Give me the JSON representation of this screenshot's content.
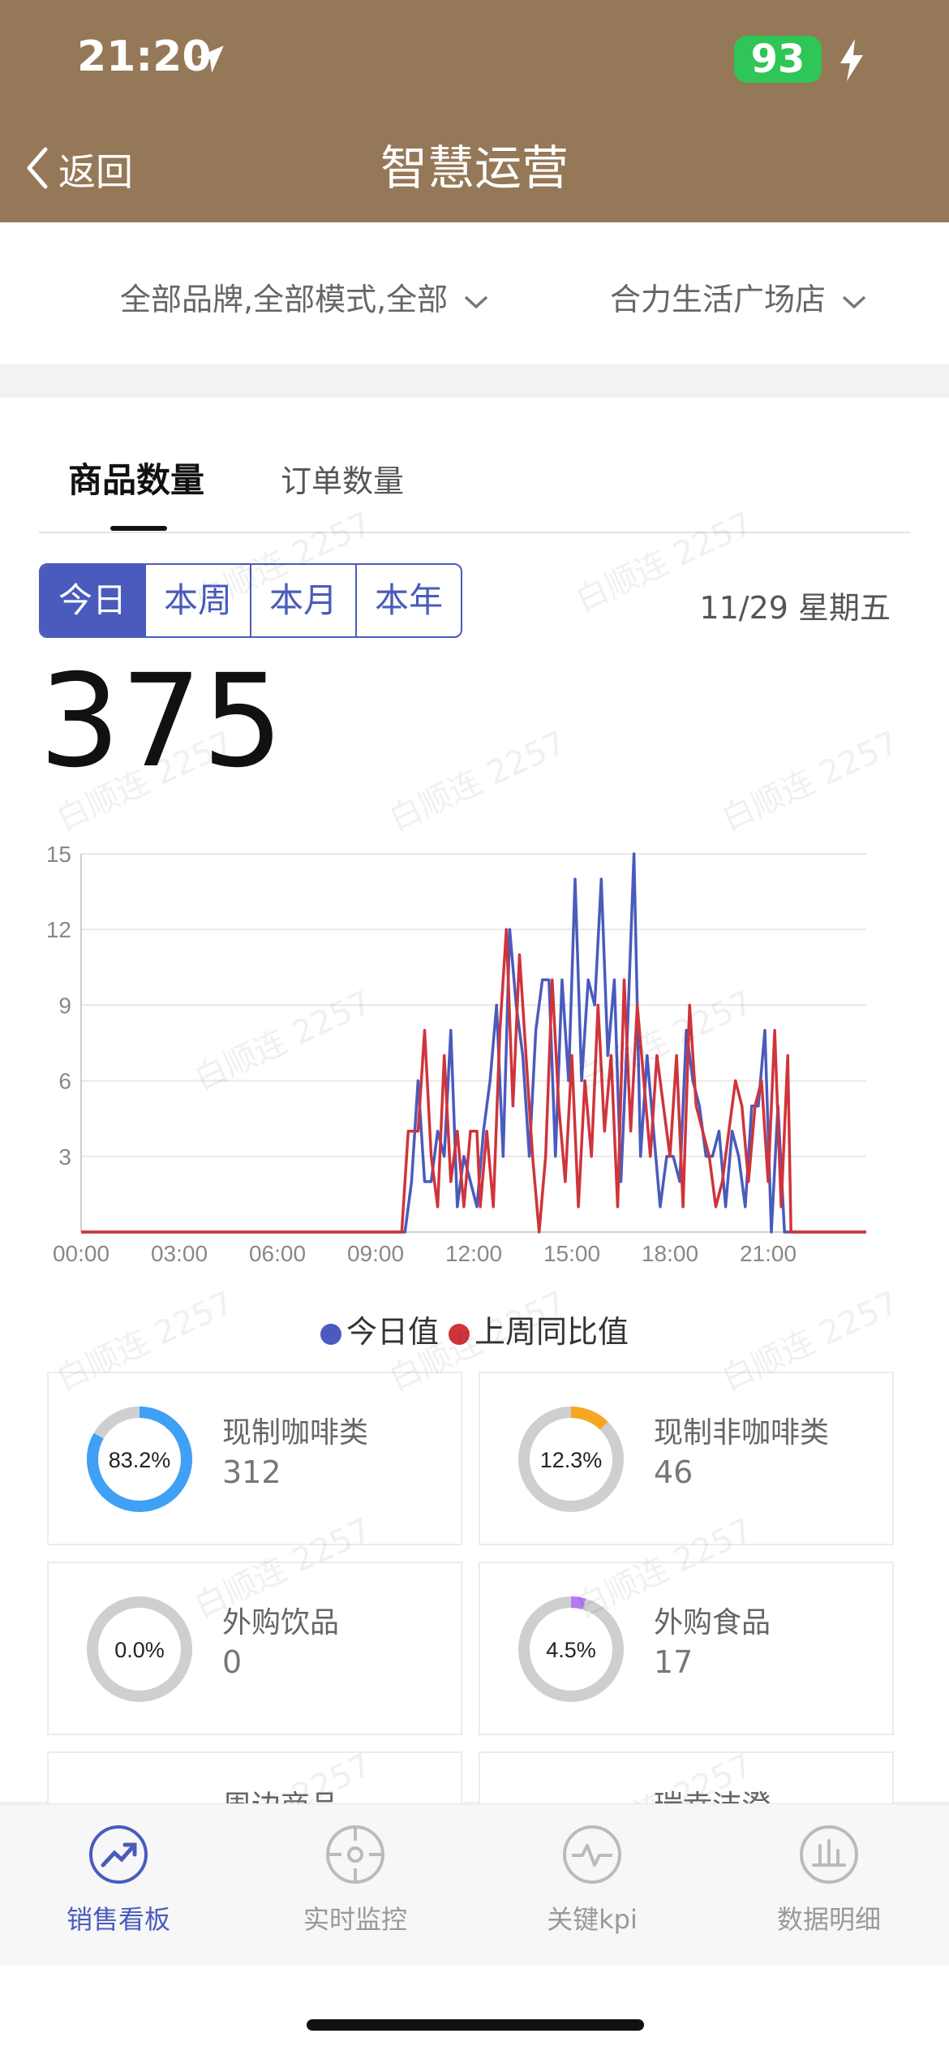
{
  "status_bar": {
    "time": "21:20",
    "battery": "93"
  },
  "nav": {
    "back_label": "返回",
    "title": "智慧运营"
  },
  "filters": {
    "brand_filter": "全部品牌,全部模式,全部",
    "store_filter": "合力生活广场店"
  },
  "tabs": [
    {
      "label": "商品数量",
      "active": true
    },
    {
      "label": "订单数量",
      "active": false
    }
  ],
  "period_segments": [
    {
      "label": "今日",
      "active": true
    },
    {
      "label": "本周"
    },
    {
      "label": "本月"
    },
    {
      "label": "本年"
    }
  ],
  "date_label": "11/29 星期五",
  "total_value": "375",
  "watermark": "白顺连 2257",
  "chart_data": {
    "type": "line",
    "x_ticks": [
      "00:00",
      "03:00",
      "06:00",
      "09:00",
      "12:00",
      "15:00",
      "18:00",
      "21:00"
    ],
    "y_ticks": [
      15,
      12,
      9,
      6,
      3
    ],
    "ylim": [
      0,
      15
    ],
    "xlim_hours": [
      0,
      24
    ],
    "legend_position": "bottom",
    "series": [
      {
        "name": "今日值",
        "color": "#4a5bbd",
        "points": [
          [
            0,
            0
          ],
          [
            9.9,
            0
          ],
          [
            10.1,
            2
          ],
          [
            10.3,
            6
          ],
          [
            10.5,
            2
          ],
          [
            10.7,
            2
          ],
          [
            10.9,
            4
          ],
          [
            11.1,
            3
          ],
          [
            11.3,
            8
          ],
          [
            11.5,
            1
          ],
          [
            11.7,
            3
          ],
          [
            11.9,
            2
          ],
          [
            12.1,
            1
          ],
          [
            12.3,
            4
          ],
          [
            12.5,
            6
          ],
          [
            12.7,
            9
          ],
          [
            12.9,
            3
          ],
          [
            13.1,
            12
          ],
          [
            13.3,
            9
          ],
          [
            13.5,
            7
          ],
          [
            13.7,
            3
          ],
          [
            13.9,
            8
          ],
          [
            14.1,
            10
          ],
          [
            14.3,
            10
          ],
          [
            14.5,
            3
          ],
          [
            14.7,
            10
          ],
          [
            14.9,
            6
          ],
          [
            15.1,
            14
          ],
          [
            15.3,
            6
          ],
          [
            15.5,
            10
          ],
          [
            15.7,
            9
          ],
          [
            15.9,
            14
          ],
          [
            16.1,
            7
          ],
          [
            16.3,
            10
          ],
          [
            16.5,
            2
          ],
          [
            16.7,
            8
          ],
          [
            16.9,
            15
          ],
          [
            17.1,
            3
          ],
          [
            17.3,
            7
          ],
          [
            17.5,
            4
          ],
          [
            17.7,
            1
          ],
          [
            17.9,
            3
          ],
          [
            18.1,
            3
          ],
          [
            18.3,
            2
          ],
          [
            18.5,
            8
          ],
          [
            18.7,
            6
          ],
          [
            18.9,
            5
          ],
          [
            19.1,
            3
          ],
          [
            19.3,
            3
          ],
          [
            19.5,
            4
          ],
          [
            19.7,
            1
          ],
          [
            19.9,
            4
          ],
          [
            20.1,
            3
          ],
          [
            20.3,
            1
          ],
          [
            20.5,
            5
          ],
          [
            20.7,
            5
          ],
          [
            20.9,
            8
          ],
          [
            21.1,
            0
          ],
          [
            21.3,
            5
          ],
          [
            21.5,
            0
          ],
          [
            24,
            0
          ]
        ]
      },
      {
        "name": "上周同比值",
        "color": "#d0343b",
        "points": [
          [
            0,
            0
          ],
          [
            9.8,
            0
          ],
          [
            10.0,
            4
          ],
          [
            10.3,
            4
          ],
          [
            10.5,
            8
          ],
          [
            10.7,
            3
          ],
          [
            10.9,
            1
          ],
          [
            11.1,
            7
          ],
          [
            11.3,
            2
          ],
          [
            11.5,
            4
          ],
          [
            11.7,
            1
          ],
          [
            11.9,
            4
          ],
          [
            12.1,
            4
          ],
          [
            12.2,
            1
          ],
          [
            12.4,
            4
          ],
          [
            12.6,
            1
          ],
          [
            12.8,
            8
          ],
          [
            13.0,
            12
          ],
          [
            13.2,
            5
          ],
          [
            13.4,
            11
          ],
          [
            13.6,
            7
          ],
          [
            13.8,
            3
          ],
          [
            14.0,
            0
          ],
          [
            14.2,
            3
          ],
          [
            14.4,
            10
          ],
          [
            14.6,
            5
          ],
          [
            14.8,
            2
          ],
          [
            15.0,
            7
          ],
          [
            15.2,
            1
          ],
          [
            15.4,
            6
          ],
          [
            15.6,
            3
          ],
          [
            15.8,
            9
          ],
          [
            16.0,
            4
          ],
          [
            16.2,
            7
          ],
          [
            16.4,
            1
          ],
          [
            16.6,
            10
          ],
          [
            16.8,
            4
          ],
          [
            17.0,
            9
          ],
          [
            17.2,
            6
          ],
          [
            17.4,
            3
          ],
          [
            17.6,
            7
          ],
          [
            17.8,
            5
          ],
          [
            18.0,
            3
          ],
          [
            18.2,
            7
          ],
          [
            18.4,
            1
          ],
          [
            18.6,
            9
          ],
          [
            18.8,
            5
          ],
          [
            19.0,
            4
          ],
          [
            19.2,
            3
          ],
          [
            19.4,
            1
          ],
          [
            19.6,
            2
          ],
          [
            19.8,
            4
          ],
          [
            20.0,
            6
          ],
          [
            20.2,
            5
          ],
          [
            20.4,
            2
          ],
          [
            20.6,
            5
          ],
          [
            20.8,
            6
          ],
          [
            21.0,
            2
          ],
          [
            21.2,
            8
          ],
          [
            21.4,
            1
          ],
          [
            21.6,
            7
          ],
          [
            21.7,
            0
          ],
          [
            24,
            0
          ]
        ]
      }
    ]
  },
  "category_cards": [
    {
      "label": "现制咖啡类",
      "value": "312",
      "percent": "83.2%",
      "ratio": 0.832,
      "color": "#3fa0f5"
    },
    {
      "label": "现制非咖啡类",
      "value": "46",
      "percent": "12.3%",
      "ratio": 0.123,
      "color": "#f5a623"
    },
    {
      "label": "外购饮品",
      "value": "0",
      "percent": "0.0%",
      "ratio": 0.0,
      "color": "#cccccc"
    },
    {
      "label": "外购食品",
      "value": "17",
      "percent": "4.5%",
      "ratio": 0.045,
      "color": "#b57af0"
    }
  ],
  "partial_cards": [
    {
      "label": "周边商品"
    },
    {
      "label": "瑞幸洁澄"
    }
  ],
  "tab_bar": [
    {
      "label": "销售看板",
      "icon": "trend-up-icon",
      "active": true
    },
    {
      "label": "实时监控",
      "icon": "crosshair-icon",
      "active": false
    },
    {
      "label": "关键kpi",
      "icon": "pulse-icon",
      "active": false
    },
    {
      "label": "数据明细",
      "icon": "bar-chart-icon",
      "active": false
    }
  ],
  "colors": {
    "header_brown": "#957858",
    "accent_blue": "#4a5bbd",
    "inactive_gray": "#bbbbbb"
  }
}
